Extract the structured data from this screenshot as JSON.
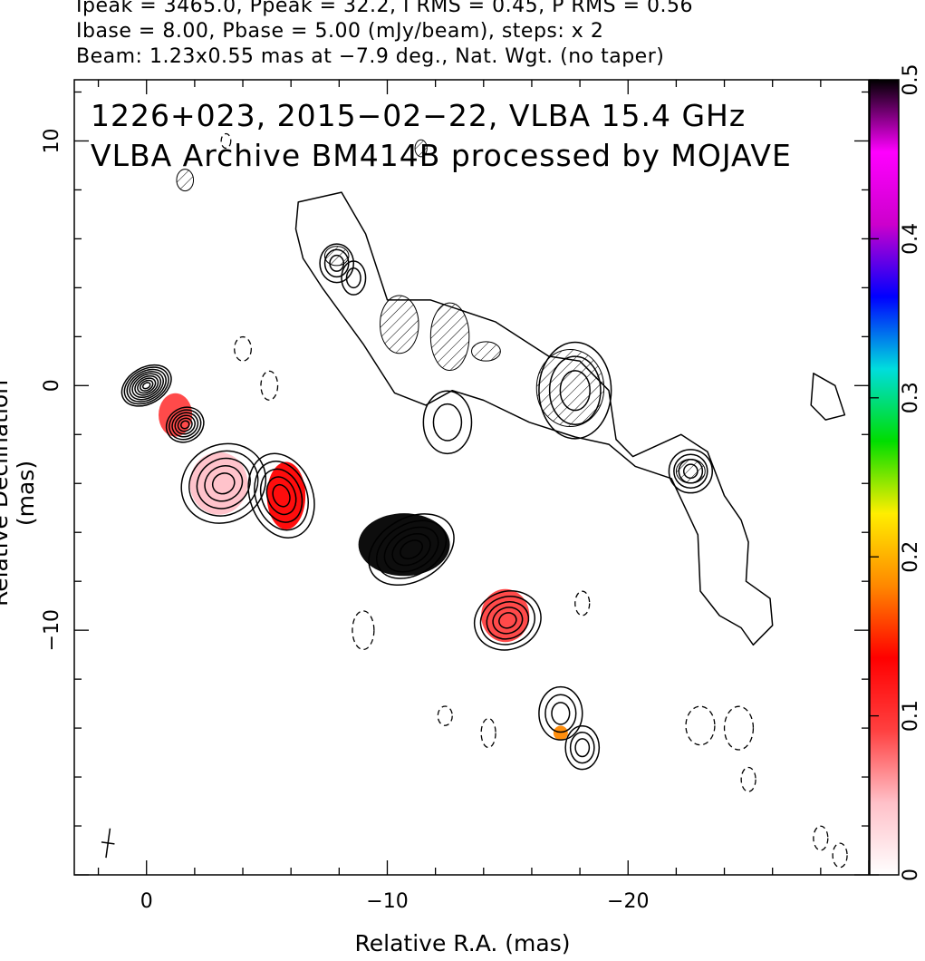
{
  "header": {
    "line1": "Ipeak = 3465.0, Ppeak = 32.2, I RMS = 0.45, P RMS = 0.56",
    "line2": "Ibase = 8.00, Pbase = 5.00 (mJy/beam), steps: x 2",
    "line3": "Beam: 1.23x0.55 mas at −7.9 deg., Nat. Wgt. (no taper)"
  },
  "annotation": {
    "line1": "1226+023, 2015−02−22, VLBA 15.4 GHz",
    "line2": "VLBA Archive BM414B processed by MOJAVE"
  },
  "chart_data": {
    "type": "heatmap",
    "xlabel": "Relative R.A. (mas)",
    "ylabel": "Relative Declination (mas)",
    "xlim": [
      3,
      -30
    ],
    "ylim": [
      -20,
      12.5
    ],
    "x_ticks": [
      {
        "value": 0,
        "label": "0"
      },
      {
        "value": -10,
        "label": "−10"
      },
      {
        "value": -20,
        "label": "−20"
      }
    ],
    "y_ticks": [
      {
        "value": 10,
        "label": "10"
      },
      {
        "value": 0,
        "label": "0"
      },
      {
        "value": -10,
        "label": "−10"
      }
    ],
    "colorbar": {
      "range": [
        0,
        0.5
      ],
      "ticks": [
        {
          "value": 0,
          "label": "0"
        },
        {
          "value": 0.1,
          "label": "0.1"
        },
        {
          "value": 0.2,
          "label": "0.2"
        },
        {
          "value": 0.3,
          "label": "0.3"
        },
        {
          "value": 0.4,
          "label": "0.4"
        },
        {
          "value": 0.5,
          "label": "0.5"
        }
      ],
      "colors": [
        "#ffffff",
        "#ffc0c8",
        "#ff4040",
        "#ff0000",
        "#ff8800",
        "#ffee00",
        "#00dd00",
        "#00dddd",
        "#0000ff",
        "#cc00cc",
        "#ff00ff",
        "#000000"
      ]
    },
    "core": {
      "x": 0,
      "y": 0
    },
    "contour_islands": [
      {
        "x": 0,
        "y": 0,
        "a": 1.1,
        "b": 0.75,
        "rings": 9,
        "angle": -30
      },
      {
        "x": -1.6,
        "y": -1.6,
        "a": 0.8,
        "b": 0.7,
        "rings": 6,
        "angle": -30
      },
      {
        "x": -3.2,
        "y": -4.0,
        "a": 1.8,
        "b": 1.6,
        "rings": 5,
        "angle": -30
      },
      {
        "x": -5.6,
        "y": -4.5,
        "a": 1.3,
        "b": 1.8,
        "rings": 5,
        "angle": -20
      },
      {
        "x": -11.0,
        "y": -6.7,
        "a": 1.9,
        "b": 1.3,
        "rings": 5,
        "angle": -30
      },
      {
        "x": -15.0,
        "y": -9.6,
        "a": 1.4,
        "b": 1.2,
        "rings": 5,
        "angle": -20
      },
      {
        "x": -17.2,
        "y": -13.4,
        "a": 0.9,
        "b": 1.1,
        "rings": 3,
        "angle": 0
      },
      {
        "x": -18.1,
        "y": -14.8,
        "a": 0.7,
        "b": 0.9,
        "rings": 3,
        "angle": 0
      },
      {
        "x": -22.6,
        "y": -3.5,
        "a": 0.9,
        "b": 0.9,
        "rings": 4,
        "angle": 0
      },
      {
        "x": -7.9,
        "y": 5.0,
        "a": 0.7,
        "b": 0.8,
        "rings": 3,
        "angle": 0
      },
      {
        "x": -8.6,
        "y": 4.4,
        "a": 0.5,
        "b": 0.7,
        "rings": 2,
        "angle": 0
      },
      {
        "x": -17.8,
        "y": -0.2,
        "a": 1.5,
        "b": 2.0,
        "rings": 3,
        "angle": 0
      },
      {
        "x": -12.5,
        "y": -1.5,
        "a": 1.0,
        "b": 1.3,
        "rings": 2,
        "angle": 0
      }
    ],
    "polarization_patches": [
      {
        "x": -1.2,
        "y": -1.2,
        "a": 0.7,
        "b": 0.9,
        "level": 0.07
      },
      {
        "x": -3.0,
        "y": -4.0,
        "a": 1.2,
        "b": 1.3,
        "level": 0.04
      },
      {
        "x": -5.8,
        "y": -4.5,
        "a": 0.8,
        "b": 1.4,
        "level": 0.14
      },
      {
        "x": -10.7,
        "y": -6.5,
        "a": 1.9,
        "b": 1.3,
        "level": 0.5
      },
      {
        "x": -14.9,
        "y": -9.4,
        "a": 1.0,
        "b": 1.1,
        "level": 0.08
      },
      {
        "x": -17.2,
        "y": -14.2,
        "a": 0.3,
        "b": 0.3,
        "level": 0.2
      }
    ],
    "negative_contours": [
      {
        "x": -4.0,
        "y": 1.5,
        "a": 0.35,
        "b": 0.5
      },
      {
        "x": -5.1,
        "y": 0.0,
        "a": 0.35,
        "b": 0.6
      },
      {
        "x": -9.0,
        "y": -10.0,
        "a": 0.45,
        "b": 0.8
      },
      {
        "x": -18.1,
        "y": -8.9,
        "a": 0.3,
        "b": 0.5
      },
      {
        "x": -23.0,
        "y": -13.9,
        "a": 0.6,
        "b": 0.8
      },
      {
        "x": -24.6,
        "y": -14.0,
        "a": 0.6,
        "b": 0.9
      },
      {
        "x": -25.0,
        "y": -16.1,
        "a": 0.3,
        "b": 0.5
      },
      {
        "x": -28.0,
        "y": -18.5,
        "a": 0.3,
        "b": 0.5
      },
      {
        "x": -28.8,
        "y": -19.2,
        "a": 0.3,
        "b": 0.5
      },
      {
        "x": -14.2,
        "y": -14.2,
        "a": 0.3,
        "b": 0.6
      },
      {
        "x": -12.4,
        "y": -13.5,
        "a": 0.3,
        "b": 0.4
      },
      {
        "x": -3.3,
        "y": 10.0,
        "a": 0.2,
        "b": 0.3
      }
    ],
    "diffuse_lobes": [
      {
        "points": [
          [
            -6.3,
            7.5
          ],
          [
            -8.1,
            7.9
          ],
          [
            -9.1,
            6.2
          ],
          [
            -10.0,
            3.5
          ],
          [
            -11.8,
            3.5
          ],
          [
            -14.5,
            2.6
          ],
          [
            -16.7,
            1.2
          ],
          [
            -18.0,
            1.0
          ],
          [
            -19.2,
            -0.2
          ],
          [
            -19.5,
            -2.2
          ],
          [
            -20.2,
            -2.9
          ],
          [
            -22.2,
            -2.0
          ],
          [
            -23.3,
            -2.7
          ],
          [
            -24.0,
            -4.5
          ],
          [
            -24.7,
            -5.5
          ],
          [
            -25.0,
            -6.4
          ],
          [
            -24.9,
            -8.0
          ],
          [
            -25.9,
            -8.7
          ],
          [
            -26.0,
            -9.8
          ],
          [
            -25.2,
            -10.6
          ],
          [
            -24.7,
            -9.9
          ],
          [
            -23.8,
            -9.4
          ],
          [
            -23.0,
            -8.4
          ],
          [
            -22.9,
            -6.1
          ],
          [
            -21.8,
            -3.8
          ],
          [
            -20.3,
            -3.3
          ],
          [
            -19.2,
            -2.4
          ],
          [
            -17.8,
            -2.1
          ],
          [
            -15.9,
            -1.5
          ],
          [
            -14.0,
            -0.6
          ],
          [
            -12.7,
            -0.2
          ],
          [
            -11.6,
            -0.8
          ],
          [
            -10.3,
            -0.3
          ],
          [
            -9.0,
            1.7
          ],
          [
            -7.3,
            4.0
          ],
          [
            -6.5,
            5.2
          ],
          [
            -6.2,
            6.4
          ]
        ]
      },
      {
        "points": [
          [
            -27.7,
            0.5
          ],
          [
            -28.6,
            0.0
          ],
          [
            -29.0,
            -1.2
          ],
          [
            -28.2,
            -1.4
          ],
          [
            -27.6,
            -0.8
          ]
        ]
      }
    ],
    "hatched_regions": [
      {
        "x": -7.9,
        "y": 5.3,
        "a": 0.5,
        "b": 0.4
      },
      {
        "x": -10.5,
        "y": 2.5,
        "a": 0.8,
        "b": 1.2
      },
      {
        "x": -12.6,
        "y": 2.0,
        "a": 0.8,
        "b": 1.4
      },
      {
        "x": -14.1,
        "y": 1.4,
        "a": 0.6,
        "b": 0.4
      },
      {
        "x": -17.6,
        "y": -0.1,
        "a": 1.4,
        "b": 1.6
      },
      {
        "x": -22.6,
        "y": -3.5,
        "a": 0.6,
        "b": 0.5
      },
      {
        "x": -1.6,
        "y": 8.4,
        "a": 0.35,
        "b": 0.45
      },
      {
        "x": -11.4,
        "y": 9.7,
        "a": 0.25,
        "b": 0.35
      }
    ],
    "beam": {
      "x": 1.6,
      "y": -18.7,
      "major": 1.23,
      "minor": 0.55,
      "angle_deg": -7.9
    }
  }
}
